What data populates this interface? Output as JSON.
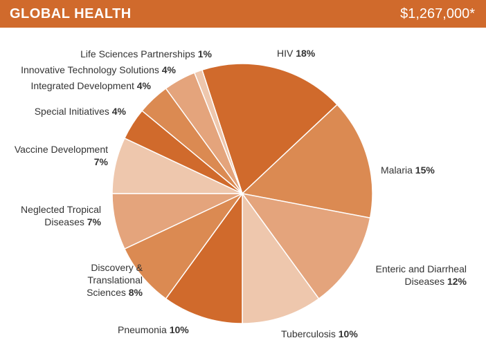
{
  "header": {
    "title": "GLOBAL HEALTH",
    "total": "$1,267,000*"
  },
  "chart_data": {
    "type": "pie",
    "unit": "%",
    "slices": [
      {
        "lines": [
          "HIV"
        ],
        "value": 18,
        "color": "#d06a2c"
      },
      {
        "lines": [
          "Malaria"
        ],
        "value": 15,
        "color": "#db8a52"
      },
      {
        "lines": [
          "Enteric and Diarrheal",
          "Diseases"
        ],
        "value": 12,
        "color": "#e4a47c"
      },
      {
        "lines": [
          "Tuberculosis"
        ],
        "value": 10,
        "color": "#eec7ad"
      },
      {
        "lines": [
          "Pneumonia"
        ],
        "value": 10,
        "color": "#d06a2c"
      },
      {
        "lines": [
          "Discovery &",
          "Translational",
          "Sciences"
        ],
        "value": 8,
        "color": "#db8a52"
      },
      {
        "lines": [
          "Neglected Tropical",
          "Diseases"
        ],
        "value": 7,
        "color": "#e4a47c"
      },
      {
        "lines": [
          "Vaccine Development",
          ""
        ],
        "value": 7,
        "color": "#eec7ad"
      },
      {
        "lines": [
          "Special Initiatives"
        ],
        "value": 4,
        "color": "#d06a2c"
      },
      {
        "lines": [
          "Integrated Development"
        ],
        "value": 4,
        "color": "#db8a52"
      },
      {
        "lines": [
          "Innovative Technology Solutions"
        ],
        "value": 4,
        "color": "#e4a47c"
      },
      {
        "lines": [
          "Life Sciences Partnerships"
        ],
        "value": 1,
        "color": "#eec7ad"
      }
    ]
  }
}
